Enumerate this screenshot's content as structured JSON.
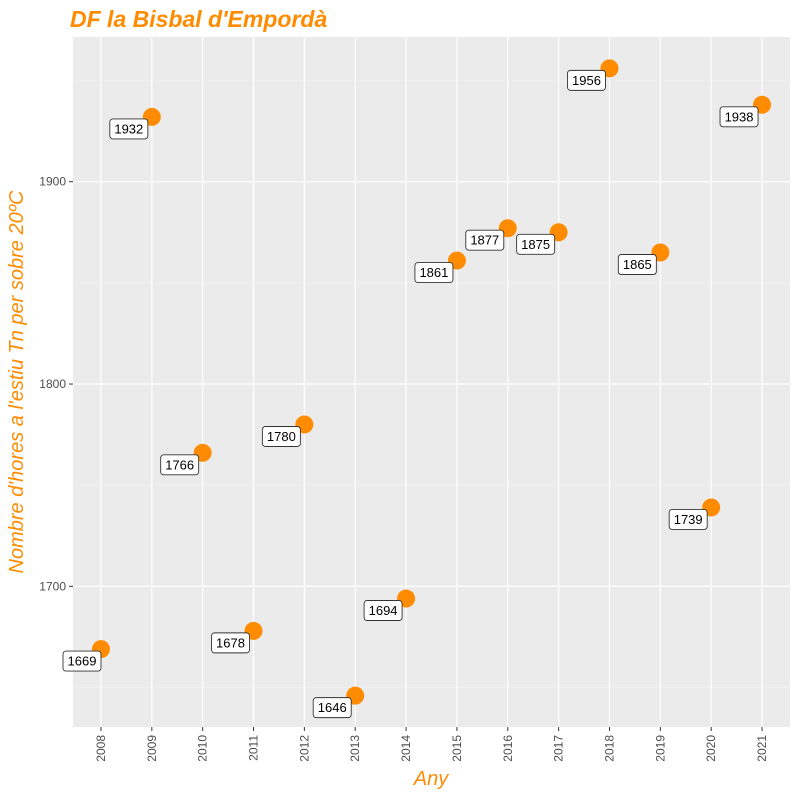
{
  "chart_data": {
    "type": "scatter",
    "title": "DF la Bisbal d'Empordà",
    "xlabel": "Any",
    "ylabel": "Nombre d'hores a l'estiu Tn per sobre 20ºC",
    "xlim": [
      2007.45,
      2021.55
    ],
    "ylim": [
      1630.5,
      1971.5
    ],
    "xticks": [
      2008,
      2009,
      2010,
      2011,
      2012,
      2013,
      2014,
      2015,
      2016,
      2017,
      2018,
      2019,
      2020,
      2021
    ],
    "yticks": [
      1700,
      1800,
      1900
    ],
    "grid": true,
    "series": [
      {
        "points": [
          {
            "x": 2008,
            "y": 1669,
            "label": "1669"
          },
          {
            "x": 2009,
            "y": 1932,
            "label": "1932"
          },
          {
            "x": 2010,
            "y": 1766,
            "label": "1766"
          },
          {
            "x": 2011,
            "y": 1678,
            "label": "1678"
          },
          {
            "x": 2012,
            "y": 1780,
            "label": "1780"
          },
          {
            "x": 2013,
            "y": 1646,
            "label": "1646"
          },
          {
            "x": 2014,
            "y": 1694,
            "label": "1694"
          },
          {
            "x": 2015,
            "y": 1861,
            "label": "1861"
          },
          {
            "x": 2016,
            "y": 1877,
            "label": "1877"
          },
          {
            "x": 2017,
            "y": 1875,
            "label": "1875"
          },
          {
            "x": 2018,
            "y": 1956,
            "label": "1956"
          },
          {
            "x": 2019,
            "y": 1865,
            "label": "1865"
          },
          {
            "x": 2020,
            "y": 1739,
            "label": "1739"
          },
          {
            "x": 2021,
            "y": 1938,
            "label": "1938"
          }
        ]
      }
    ]
  },
  "colors": {
    "accent": "#ff8c00",
    "panel": "#ebebeb",
    "grid_major": "#ffffff",
    "grid_minor": "#f5f5f5",
    "tick_text": "#4d4d4d"
  }
}
